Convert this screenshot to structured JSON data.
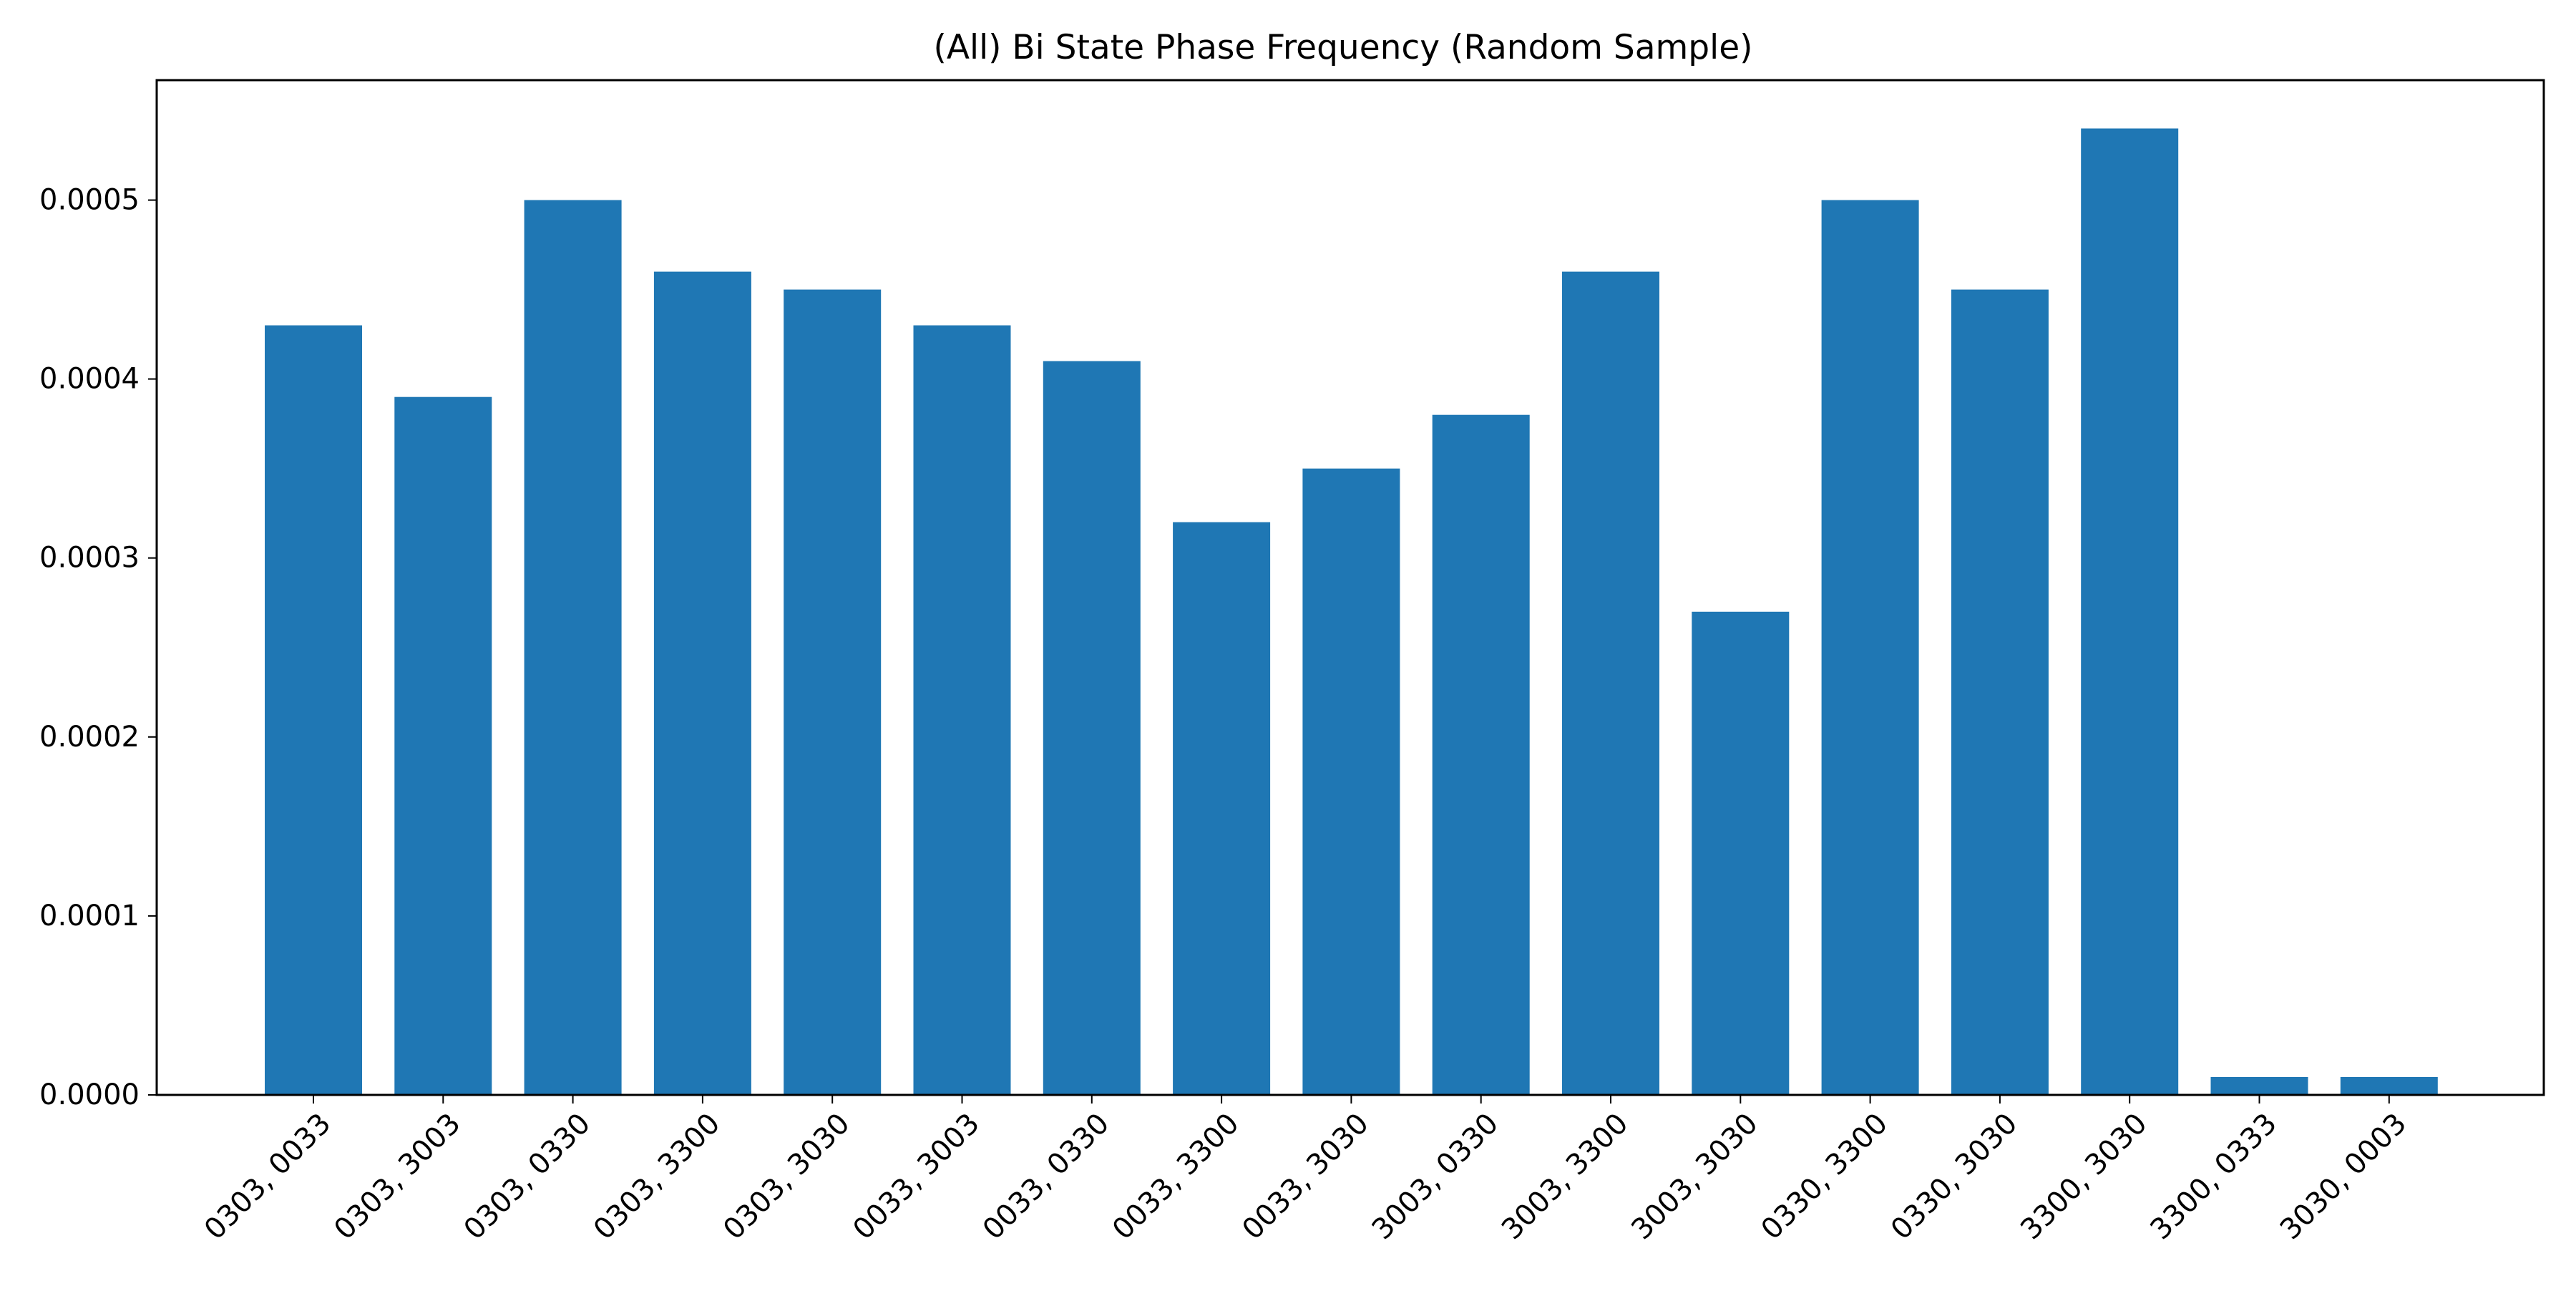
{
  "chart_data": {
    "type": "bar",
    "title": "(All) Bi State Phase Frequency (Random Sample)",
    "xlabel": "",
    "ylabel": "",
    "categories": [
      "0303, 0033",
      "0303, 3003",
      "0303, 0330",
      "0303, 3300",
      "0303, 3030",
      "0033, 3003",
      "0033, 0330",
      "0033, 3300",
      "0033, 3030",
      "3003, 0330",
      "3003, 3300",
      "3003, 3030",
      "0330, 3300",
      "0330, 3030",
      "3300, 3030",
      "3300, 0333",
      "3030, 0003"
    ],
    "values": [
      0.00043,
      0.00039,
      0.0005,
      0.00046,
      0.00045,
      0.00043,
      0.00041,
      0.00032,
      0.00035,
      0.00038,
      0.00046,
      0.00027,
      0.0005,
      0.00045,
      0.00054,
      1e-05,
      1e-05
    ],
    "yticks": [
      0,
      0.0001,
      0.0002,
      0.0003,
      0.0004,
      0.0005
    ],
    "ytick_labels": [
      "0.0000",
      "0.0001",
      "0.0002",
      "0.0003",
      "0.0004",
      "0.0005"
    ],
    "ylim": [
      0,
      0.000567
    ],
    "grid": false,
    "legend": "none",
    "bar_color": "#1f77b4"
  }
}
